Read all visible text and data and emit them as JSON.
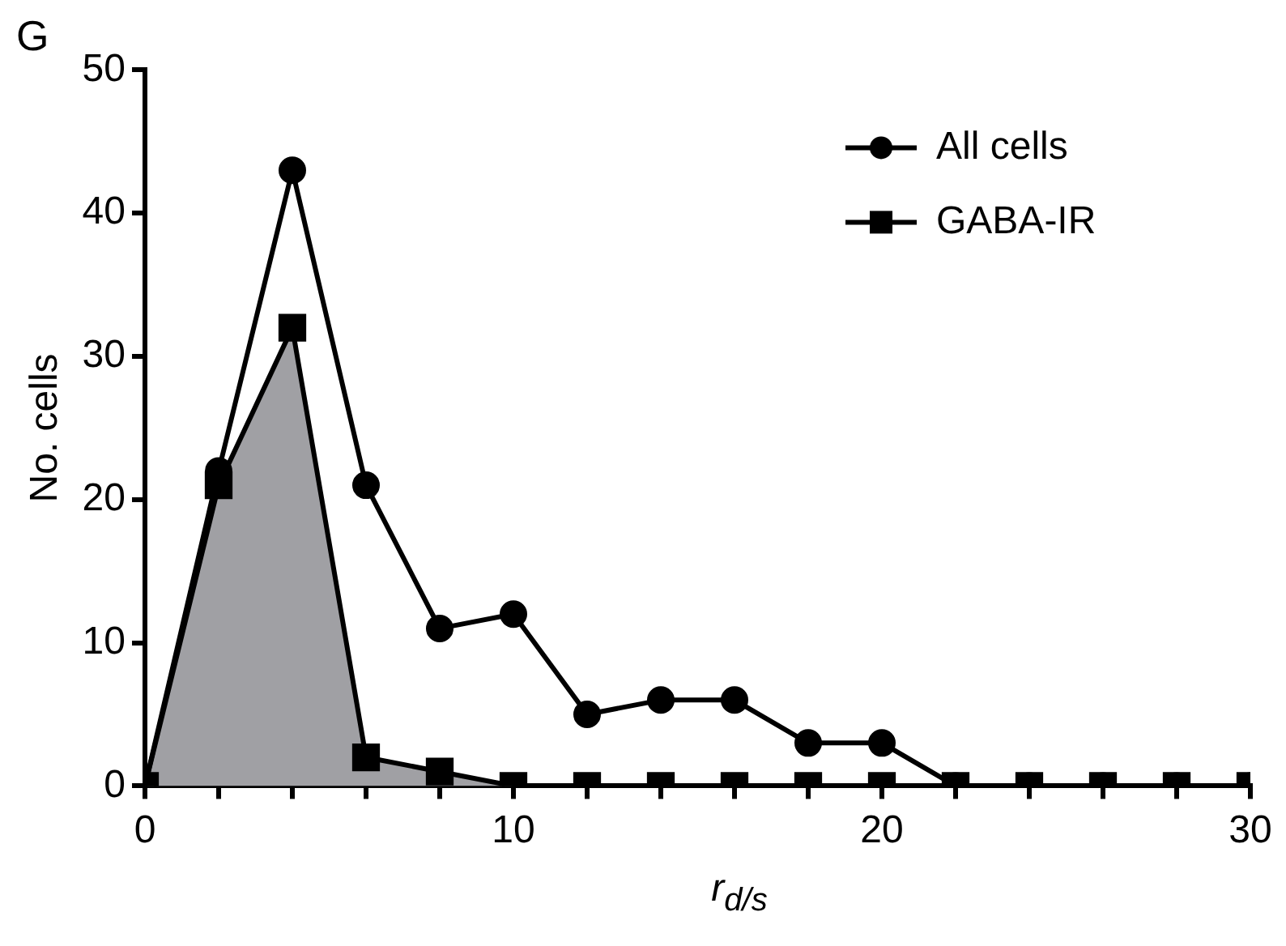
{
  "chart_data": {
    "type": "line",
    "title": "G",
    "xlabel": "r$_{d/s}$",
    "ylabel": "No. cells",
    "x": [
      0,
      2,
      4,
      6,
      8,
      10,
      12,
      14,
      16,
      18,
      20,
      22,
      24,
      26,
      28,
      30
    ],
    "series": [
      {
        "name": "All cells",
        "color": "#000000",
        "marker": "circle",
        "values": [
          0,
          22,
          43,
          21,
          11,
          12,
          5,
          6,
          6,
          3,
          3,
          0,
          0,
          0,
          0,
          0
        ]
      },
      {
        "name": "GABA-IR",
        "type": "area",
        "color": "#000000",
        "marker": "square",
        "values": [
          0,
          21,
          32,
          2,
          1,
          0,
          0,
          0,
          0,
          0,
          0,
          0,
          0,
          0,
          0,
          0
        ]
      }
    ],
    "xlim": [
      0,
      30
    ],
    "xticks": [
      0,
      {
        "value": 2,
        "label": null
      },
      {
        "value": 4,
        "label": null
      },
      {
        "value": 6,
        "label": null
      },
      {
        "value": 8,
        "label": null
      },
      10,
      {
        "value": 12,
        "label": null
      },
      {
        "value": 14,
        "label": null
      },
      {
        "value": 16,
        "label": null
      },
      {
        "value": 18,
        "label": null
      },
      20,
      {
        "value": 22,
        "label": null
      },
      {
        "value": 24,
        "label": null
      },
      {
        "value": 26,
        "label": null
      },
      {
        "value": 28,
        "label": null
      },
      30
    ],
    "ylim": [
      0,
      50
    ],
    "yticks": [
      0,
      10,
      20,
      30,
      40,
      50
    ],
    "grid": false,
    "legend": "top right",
    "line_style": "solid"
  }
}
